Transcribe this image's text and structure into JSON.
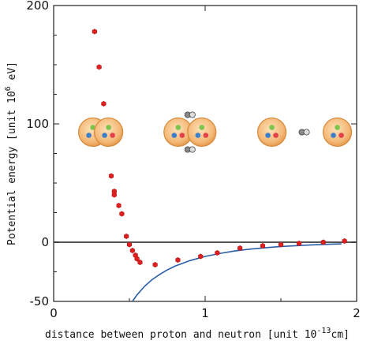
{
  "chart_data": {
    "type": "scatter",
    "xlabel": "distance between proton and neutron [unit 10",
    "xlabel_exp": "-13",
    "xlabel_unit": "cm]",
    "ylabel": "Potential energy  [unit 10",
    "ylabel_exp": "6",
    "ylabel_unit": " eV]",
    "xlim": [
      0,
      2
    ],
    "ylim": [
      -50,
      200
    ],
    "x_ticks": [
      0,
      1,
      2
    ],
    "x_tick_labels": [
      "0",
      "1",
      "2"
    ],
    "y_ticks": [
      -50,
      0,
      100,
      200
    ],
    "y_tick_labels": [
      "-50",
      "0",
      "100",
      "200"
    ],
    "grid": false,
    "zero_line": true,
    "series": [
      {
        "kind": "points",
        "color": "#e02020",
        "x": [
          0.27,
          0.3,
          0.33,
          0.38,
          0.4,
          0.4,
          0.43,
          0.45,
          0.48,
          0.5,
          0.52,
          0.54,
          0.55,
          0.57,
          0.67,
          0.82,
          0.97,
          1.08,
          1.23,
          1.38,
          1.5,
          1.62,
          1.78,
          1.92
        ],
        "y": [
          178,
          148,
          117,
          56,
          43,
          40,
          31,
          24,
          5,
          -2,
          -7,
          -11,
          -14,
          -17,
          -19,
          -15,
          -12,
          -9,
          -5,
          -3,
          -2,
          -1,
          0,
          1
        ]
      },
      {
        "kind": "curve",
        "color": "#2a5fa8",
        "x": [
          0.52,
          0.55,
          0.6,
          0.65,
          0.7,
          0.75,
          0.8,
          0.9,
          1.0,
          1.1,
          1.2,
          1.3,
          1.4,
          1.5,
          1.6,
          1.7,
          1.8,
          1.9
        ],
        "y": [
          -50,
          -44.5,
          -37.3,
          -31.6,
          -27.2,
          -23.4,
          -20.3,
          -15.5,
          -12.0,
          -9.4,
          -7.3,
          -5.8,
          -4.6,
          -3.6,
          -2.9,
          -2.3,
          -1.8,
          -1.4
        ]
      }
    ],
    "illustrations": [
      {
        "x": 0.3,
        "y": 93,
        "kind": "nucleons-overlapping"
      },
      {
        "x": 0.9,
        "y": 93,
        "kind": "nucleons-touching-exchange"
      },
      {
        "x": 1.68,
        "y": 93,
        "kind": "nucleons-separated-exchange"
      }
    ]
  }
}
